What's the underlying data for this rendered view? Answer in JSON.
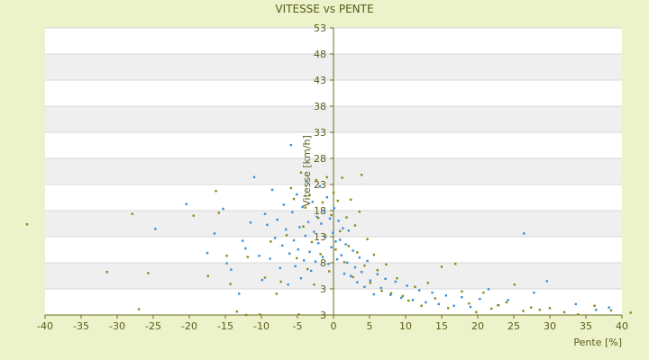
{
  "chart_data": {
    "type": "scatter",
    "title": "VITESSE vs PENTE",
    "xlabel": "Pente [%]",
    "ylabel": "Vitesse [km/h]",
    "xlim": [
      -40,
      40
    ],
    "ylim": [
      3,
      53
    ],
    "xticks": [
      "-40",
      "-35",
      "-30",
      "-25",
      "-20",
      "-15",
      "-10",
      "-5",
      "0",
      "5",
      "10",
      "15",
      "20",
      "25",
      "30",
      "35",
      "40"
    ],
    "yticks": [
      "3",
      "3",
      "8",
      "13",
      "18",
      "23",
      "28",
      "33",
      "38",
      "43",
      "48",
      "53"
    ],
    "grid": true,
    "legend": "none",
    "colors": {
      "series_a": "#3a8fd8",
      "series_b": "#8a8a1a",
      "band": "#efefef",
      "plot_bg": "#ffffff",
      "axis": "#6b6b1f"
    },
    "series": [
      {
        "color": "#3a8fd8",
        "points": [
          [
            -24.7,
            18.0
          ],
          [
            -20.4,
            22.3
          ],
          [
            -17.5,
            13.8
          ],
          [
            -16.5,
            17.2
          ],
          [
            -15.3,
            21.5
          ],
          [
            -14.8,
            12.0
          ],
          [
            -14.2,
            10.9
          ],
          [
            -13.1,
            6.7
          ],
          [
            -12.6,
            15.9
          ],
          [
            -12.2,
            14.6
          ],
          [
            -11.5,
            19.1
          ],
          [
            -11.0,
            27.0
          ],
          [
            -10.3,
            13.3
          ],
          [
            -9.9,
            9.1
          ],
          [
            -9.5,
            20.6
          ],
          [
            -9.2,
            18.7
          ],
          [
            -8.8,
            12.8
          ],
          [
            -8.5,
            24.8
          ],
          [
            -8.1,
            16.4
          ],
          [
            -7.8,
            19.6
          ],
          [
            -7.4,
            11.2
          ],
          [
            -7.1,
            15.1
          ],
          [
            -6.9,
            22.2
          ],
          [
            -6.6,
            17.9
          ],
          [
            -6.3,
            8.3
          ],
          [
            -6.1,
            13.7
          ],
          [
            -5.9,
            32.6
          ],
          [
            -5.7,
            20.9
          ],
          [
            -5.5,
            16.0
          ],
          [
            -5.3,
            11.5
          ],
          [
            -5.1,
            24.0
          ],
          [
            -4.9,
            14.4
          ],
          [
            -4.7,
            18.3
          ],
          [
            -4.5,
            9.4
          ],
          [
            -4.3,
            21.8
          ],
          [
            -4.1,
            12.5
          ],
          [
            -3.9,
            16.8
          ],
          [
            -3.7,
            26.2
          ],
          [
            -3.5,
            19.2
          ],
          [
            -3.3,
            14.0
          ],
          [
            -3.1,
            10.7
          ],
          [
            -2.9,
            22.7
          ],
          [
            -2.7,
            17.5
          ],
          [
            -2.5,
            12.3
          ],
          [
            -2.3,
            20.1
          ],
          [
            -2.1,
            15.5
          ],
          [
            -1.9,
            25.4
          ],
          [
            -1.7,
            18.9
          ],
          [
            -1.5,
            13.1
          ],
          [
            -1.3,
            21.1
          ],
          [
            -1.1,
            16.6
          ],
          [
            -0.9,
            23.5
          ],
          [
            -0.7,
            11.9
          ],
          [
            -0.5,
            19.8
          ],
          [
            -0.3,
            14.8
          ],
          [
            -0.1,
            17.3
          ],
          [
            0.1,
            21.6
          ],
          [
            0.3,
            15.8
          ],
          [
            0.5,
            12.7
          ],
          [
            0.7,
            19.4
          ],
          [
            0.9,
            16.1
          ],
          [
            1.1,
            13.4
          ],
          [
            1.3,
            18.1
          ],
          [
            1.5,
            10.2
          ],
          [
            1.7,
            15.3
          ],
          [
            1.9,
            12.1
          ],
          [
            2.1,
            17.7
          ],
          [
            2.4,
            9.8
          ],
          [
            2.7,
            14.2
          ],
          [
            3.0,
            11.3
          ],
          [
            3.3,
            8.7
          ],
          [
            3.6,
            13.0
          ],
          [
            3.9,
            10.5
          ],
          [
            4.3,
            7.9
          ],
          [
            4.7,
            12.4
          ],
          [
            5.1,
            9.0
          ],
          [
            5.6,
            6.6
          ],
          [
            6.1,
            10.1
          ],
          [
            6.6,
            7.7
          ],
          [
            7.2,
            9.3
          ],
          [
            7.9,
            6.5
          ],
          [
            8.6,
            8.8
          ],
          [
            9.4,
            6.0
          ],
          [
            10.2,
            8.1
          ],
          [
            11.0,
            5.6
          ],
          [
            11.9,
            7.3
          ],
          [
            12.8,
            5.2
          ],
          [
            13.7,
            6.9
          ],
          [
            14.6,
            4.9
          ],
          [
            15.6,
            6.4
          ],
          [
            16.7,
            4.6
          ],
          [
            17.8,
            6.1
          ],
          [
            19.0,
            4.4
          ],
          [
            20.3,
            5.8
          ],
          [
            21.5,
            7.5
          ],
          [
            22.8,
            4.7
          ],
          [
            24.2,
            5.6
          ],
          [
            26.4,
            17.2
          ],
          [
            27.8,
            6.9
          ],
          [
            29.6,
            8.9
          ],
          [
            33.6,
            4.9
          ],
          [
            36.4,
            3.9
          ],
          [
            38.2,
            4.3
          ]
        ]
      },
      {
        "color": "#8a8a1a",
        "points": [
          [
            -42.5,
            18.8
          ],
          [
            -31.4,
            10.5
          ],
          [
            -27.9,
            20.6
          ],
          [
            -27.0,
            4.0
          ],
          [
            -25.7,
            10.3
          ],
          [
            -19.4,
            20.3
          ],
          [
            -17.4,
            9.8
          ],
          [
            -16.3,
            24.6
          ],
          [
            -15.9,
            20.8
          ],
          [
            -14.8,
            13.3
          ],
          [
            -14.3,
            8.4
          ],
          [
            -13.4,
            3.6
          ],
          [
            -12.1,
            3.0
          ],
          [
            -11.9,
            13.1
          ],
          [
            -10.2,
            3.1
          ],
          [
            -9.5,
            9.5
          ],
          [
            -8.7,
            15.8
          ],
          [
            -7.9,
            6.7
          ],
          [
            -7.3,
            8.8
          ],
          [
            -6.5,
            16.9
          ],
          [
            -5.9,
            25.1
          ],
          [
            -5.5,
            23.2
          ],
          [
            -5.1,
            12.9
          ],
          [
            -4.8,
            3.1
          ],
          [
            -4.5,
            27.8
          ],
          [
            -4.2,
            18.4
          ],
          [
            -3.9,
            21.7
          ],
          [
            -3.6,
            11.0
          ],
          [
            -3.3,
            23.9
          ],
          [
            -3.0,
            15.7
          ],
          [
            -2.7,
            8.3
          ],
          [
            -2.4,
            26.5
          ],
          [
            -2.1,
            19.9
          ],
          [
            -1.8,
            13.6
          ],
          [
            -1.5,
            22.6
          ],
          [
            -1.2,
            16.9
          ],
          [
            -0.9,
            27.0
          ],
          [
            -0.6,
            10.6
          ],
          [
            -0.3,
            20.4
          ],
          [
            0.0,
            24.3
          ],
          [
            0.3,
            14.4
          ],
          [
            0.6,
            22.9
          ],
          [
            0.9,
            17.6
          ],
          [
            1.2,
            26.9
          ],
          [
            1.5,
            12.2
          ],
          [
            1.8,
            20.0
          ],
          [
            2.1,
            15.0
          ],
          [
            2.4,
            23.1
          ],
          [
            2.7,
            9.6
          ],
          [
            3.0,
            18.6
          ],
          [
            3.3,
            13.9
          ],
          [
            3.6,
            21.0
          ],
          [
            3.9,
            27.4
          ],
          [
            4.3,
            11.6
          ],
          [
            4.7,
            16.2
          ],
          [
            5.1,
            8.6
          ],
          [
            5.6,
            13.5
          ],
          [
            6.1,
            10.8
          ],
          [
            6.7,
            7.2
          ],
          [
            7.3,
            11.8
          ],
          [
            8.0,
            6.8
          ],
          [
            8.8,
            9.4
          ],
          [
            9.6,
            6.3
          ],
          [
            10.4,
            5.5
          ],
          [
            11.3,
            7.9
          ],
          [
            12.2,
            4.6
          ],
          [
            13.1,
            8.6
          ],
          [
            14.1,
            5.9
          ],
          [
            15.0,
            11.4
          ],
          [
            15.9,
            4.2
          ],
          [
            16.9,
            11.9
          ],
          [
            17.8,
            7.1
          ],
          [
            18.8,
            5.0
          ],
          [
            19.8,
            3.5
          ],
          [
            20.8,
            6.9
          ],
          [
            21.9,
            4.1
          ],
          [
            22.9,
            4.7
          ],
          [
            24.0,
            5.2
          ],
          [
            25.1,
            8.3
          ],
          [
            26.3,
            3.7
          ],
          [
            27.4,
            4.3
          ],
          [
            28.6,
            3.9
          ],
          [
            30.0,
            4.2
          ],
          [
            32.0,
            3.5
          ],
          [
            33.9,
            3.1
          ],
          [
            36.2,
            4.6
          ],
          [
            38.5,
            3.8
          ],
          [
            41.2,
            3.4
          ]
        ]
      }
    ]
  }
}
